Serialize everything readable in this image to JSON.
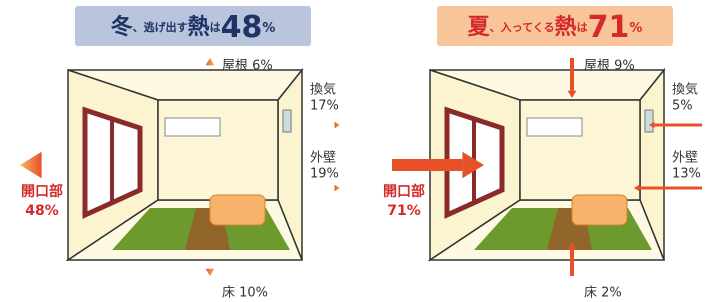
{
  "panels": [
    {
      "title": [
        "冬",
        "、逃げ出す",
        "熱",
        "は",
        "48",
        "%"
      ],
      "roof": "屋根 6%",
      "vent": [
        "換気",
        "17%"
      ],
      "wall": [
        "外壁",
        "19%"
      ],
      "opening": [
        "開口部",
        "48%"
      ],
      "floor": "床 10%"
    },
    {
      "title": [
        "夏",
        "、入ってくる",
        "熱",
        "は",
        "71",
        "%"
      ],
      "roof": "屋根 9%",
      "vent": [
        "換気",
        "5%"
      ],
      "wall": [
        "外壁",
        "13%"
      ],
      "opening": [
        "開口部",
        "71%"
      ],
      "floor": "床 2%"
    }
  ]
}
